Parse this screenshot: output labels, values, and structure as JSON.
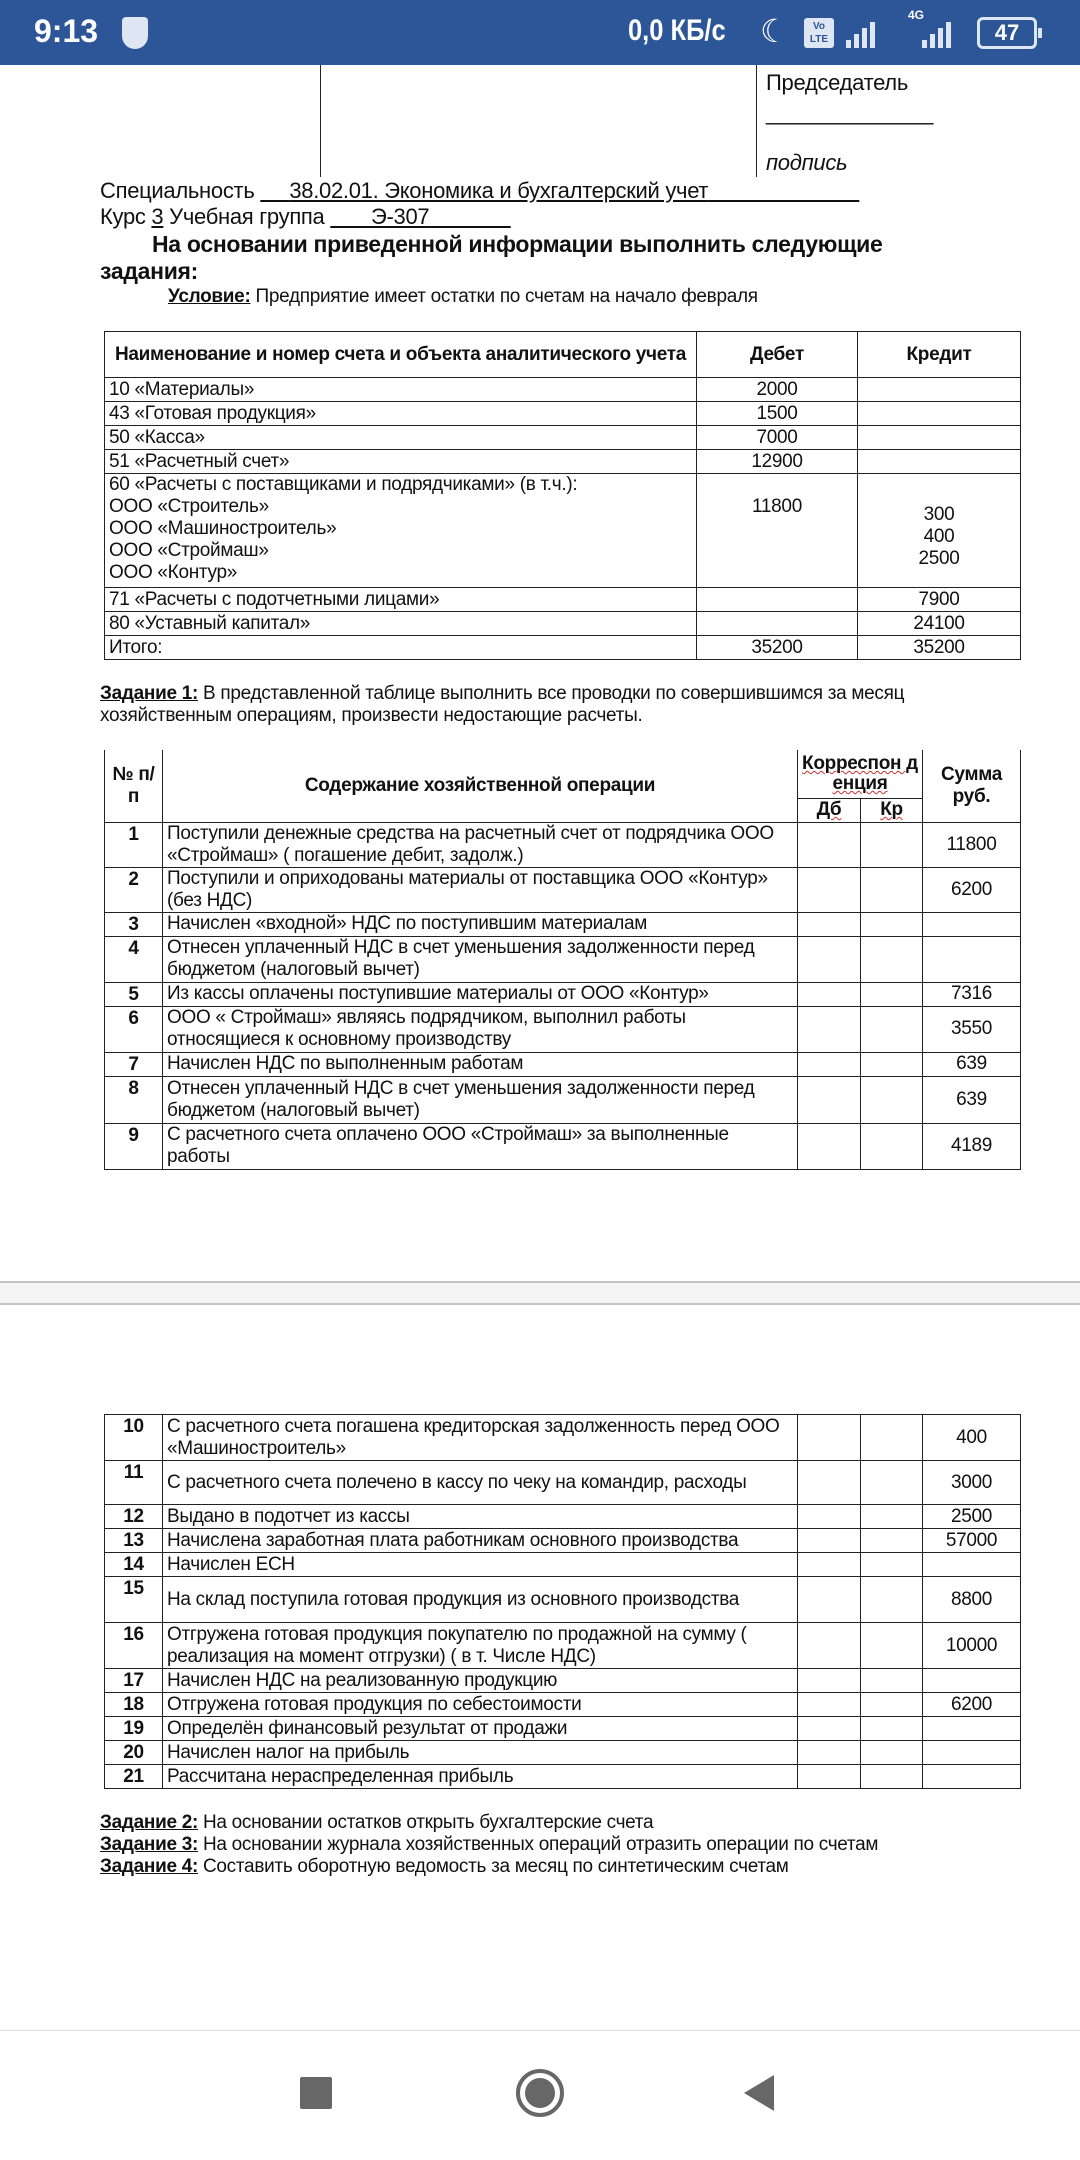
{
  "status_bar": {
    "time": "9:13",
    "speed": "0,0 КБ/с",
    "volte": "Vo LTE",
    "network": "4G",
    "battery": "47",
    "icons": [
      "shield-icon",
      "moon-icon",
      "signal-icon",
      "battery-icon"
    ],
    "background": "#2c5697"
  },
  "header": {
    "chairman": "Председатель",
    "signature_line": "______________",
    "signature": "подпись",
    "specialty_label": "Специальность",
    "specialty_value": "38.02.01.  Экономика и бухгалтерский учет",
    "course_label": "Курс",
    "course_value": "3",
    "group_label": "Учебная группа",
    "group_value": "Э-307",
    "instruction_line1": "На основании приведенной информации выполнить следующие",
    "instruction_line2": "задания:",
    "condition_label": "Условие:",
    "condition_text": "Предприятие имеет остатки по счетам на начало февраля"
  },
  "balances": {
    "headers": [
      "Наименование и номер счета и объекта аналитического учета",
      "Дебет",
      "Кредит"
    ],
    "rows": [
      {
        "name": "10 «Материалы»",
        "debit": "2000",
        "credit": ""
      },
      {
        "name": "43 «Готовая продукция»",
        "debit": "1500",
        "credit": ""
      },
      {
        "name": "50 «Касса»",
        "debit": "7000",
        "credit": ""
      },
      {
        "name": "51 «Расчетный счет»",
        "debit": "12900",
        "credit": ""
      }
    ],
    "row60": {
      "name": "60 «Расчеты с поставщиками и подрядчиками» (в т.ч.):",
      "subs": [
        "ООО «Строитель»",
        "ООО «Машиностроитель»",
        "ООО «Строймаш»",
        "ООО «Контур»"
      ],
      "debit": "11800",
      "credits": [
        "300",
        "400",
        "2500"
      ]
    },
    "rows_after": [
      {
        "name": "71 «Расчеты с подотчетными лицами»",
        "debit": "",
        "credit": "7900"
      },
      {
        "name": "80 «Уставный капитал»",
        "debit": "",
        "credit": "24100"
      },
      {
        "name": "Итого:",
        "debit": "35200",
        "credit": "35200"
      }
    ]
  },
  "task1": {
    "label": "Задание 1:",
    "text1": "В представленной таблице выполнить все проводки по совершившимся за месяц",
    "text2": "хозяйственным операциям, произвести недостающие расчеты."
  },
  "operations": {
    "headers": {
      "num": "№ п/п",
      "content": "Содержание хозяйственной операции",
      "corr": "Корреспон д енция",
      "db": "Дб",
      "kr": "Кр",
      "sum": "Сумма руб."
    },
    "rows_page1": [
      {
        "n": "1",
        "text": "Поступили денежные средства на расчетный счет от подрядчика ООО «Строймаш» ( погашение дебит, задолж.)",
        "sum": "11800"
      },
      {
        "n": "2",
        "text": "Поступили и оприходованы материалы от поставщика ООО «Контур» (без НДС)",
        "sum": "6200"
      },
      {
        "n": "3",
        "text": "Начислен «входной» НДС по поступившим материалам",
        "sum": ""
      },
      {
        "n": "4",
        "text": "Отнесен уплаченный НДС в счет уменьшения задолженности перед бюджетом (налоговый вычет)",
        "sum": ""
      },
      {
        "n": "5",
        "text": "Из кассы оплачены поступившие материалы от ООО «Контур»",
        "sum": "7316"
      },
      {
        "n": "6",
        "text": "ООО « Строймаш» являясь подрядчиком, выполнил работы относящиеся к основному производству",
        "sum": "3550"
      },
      {
        "n": "7",
        "text": "Начислен НДС по выполненным работам",
        "sum": "639"
      },
      {
        "n": "8",
        "text": "Отнесен уплаченный НДС в счет уменьшения задолженности перед бюджетом (налоговый вычет)",
        "sum": "639"
      },
      {
        "n": "9",
        "text": "С расчетного счета оплачено ООО «Строймаш» за выполненные работы",
        "sum": "4189"
      }
    ],
    "rows_page2": [
      {
        "n": "10",
        "text": "С расчетного счета погашена кредиторская задолженность перед ООО «Машиностроитель»",
        "sum": "400"
      },
      {
        "n": "11",
        "text": "С расчетного счета полечено в кассу по чеку на командир, расходы",
        "sum": "3000"
      },
      {
        "n": "12",
        "text": "Выдано в подотчет из кассы",
        "sum": "2500"
      },
      {
        "n": "13",
        "text": "Начислена заработная плата работникам основного производства",
        "sum": "57000"
      },
      {
        "n": "14",
        "text": "Начислен ЕСН",
        "sum": ""
      },
      {
        "n": "15",
        "text": "На склад поступила готовая продукция из основного производства",
        "sum": "8800"
      },
      {
        "n": "16",
        "text": "Отгружена готовая продукция покупателю по продажной на сумму ( реализация на момент отгрузки) ( в т. Числе НДС)",
        "sum": "10000"
      },
      {
        "n": "17",
        "text": "Начислен НДС на реализованную продукцию",
        "sum": ""
      },
      {
        "n": "18",
        "text": "Отгружена готовая продукция по себестоимости",
        "sum": "6200"
      },
      {
        "n": "19",
        "text": "Определён финансовый результат от продажи",
        "sum": ""
      },
      {
        "n": "20",
        "text": "Начислен налог на прибыль",
        "sum": ""
      },
      {
        "n": "21",
        "text": "Рассчитана нераспределенная прибыль",
        "sum": ""
      }
    ]
  },
  "tasks": [
    {
      "label": "Задание 2:",
      "text": "На основании остатков открыть бухгалтерские счета"
    },
    {
      "label": "Задание 3:",
      "text": "На основании журнала хозяйственных операций отразить операции по счетам"
    },
    {
      "label": "Задание 4:",
      "text": "Составить оборотную ведомость за месяц по синтетическим счетам"
    }
  ],
  "nav_bar": {
    "icons": [
      "recents-icon",
      "home-icon",
      "back-icon"
    ]
  }
}
